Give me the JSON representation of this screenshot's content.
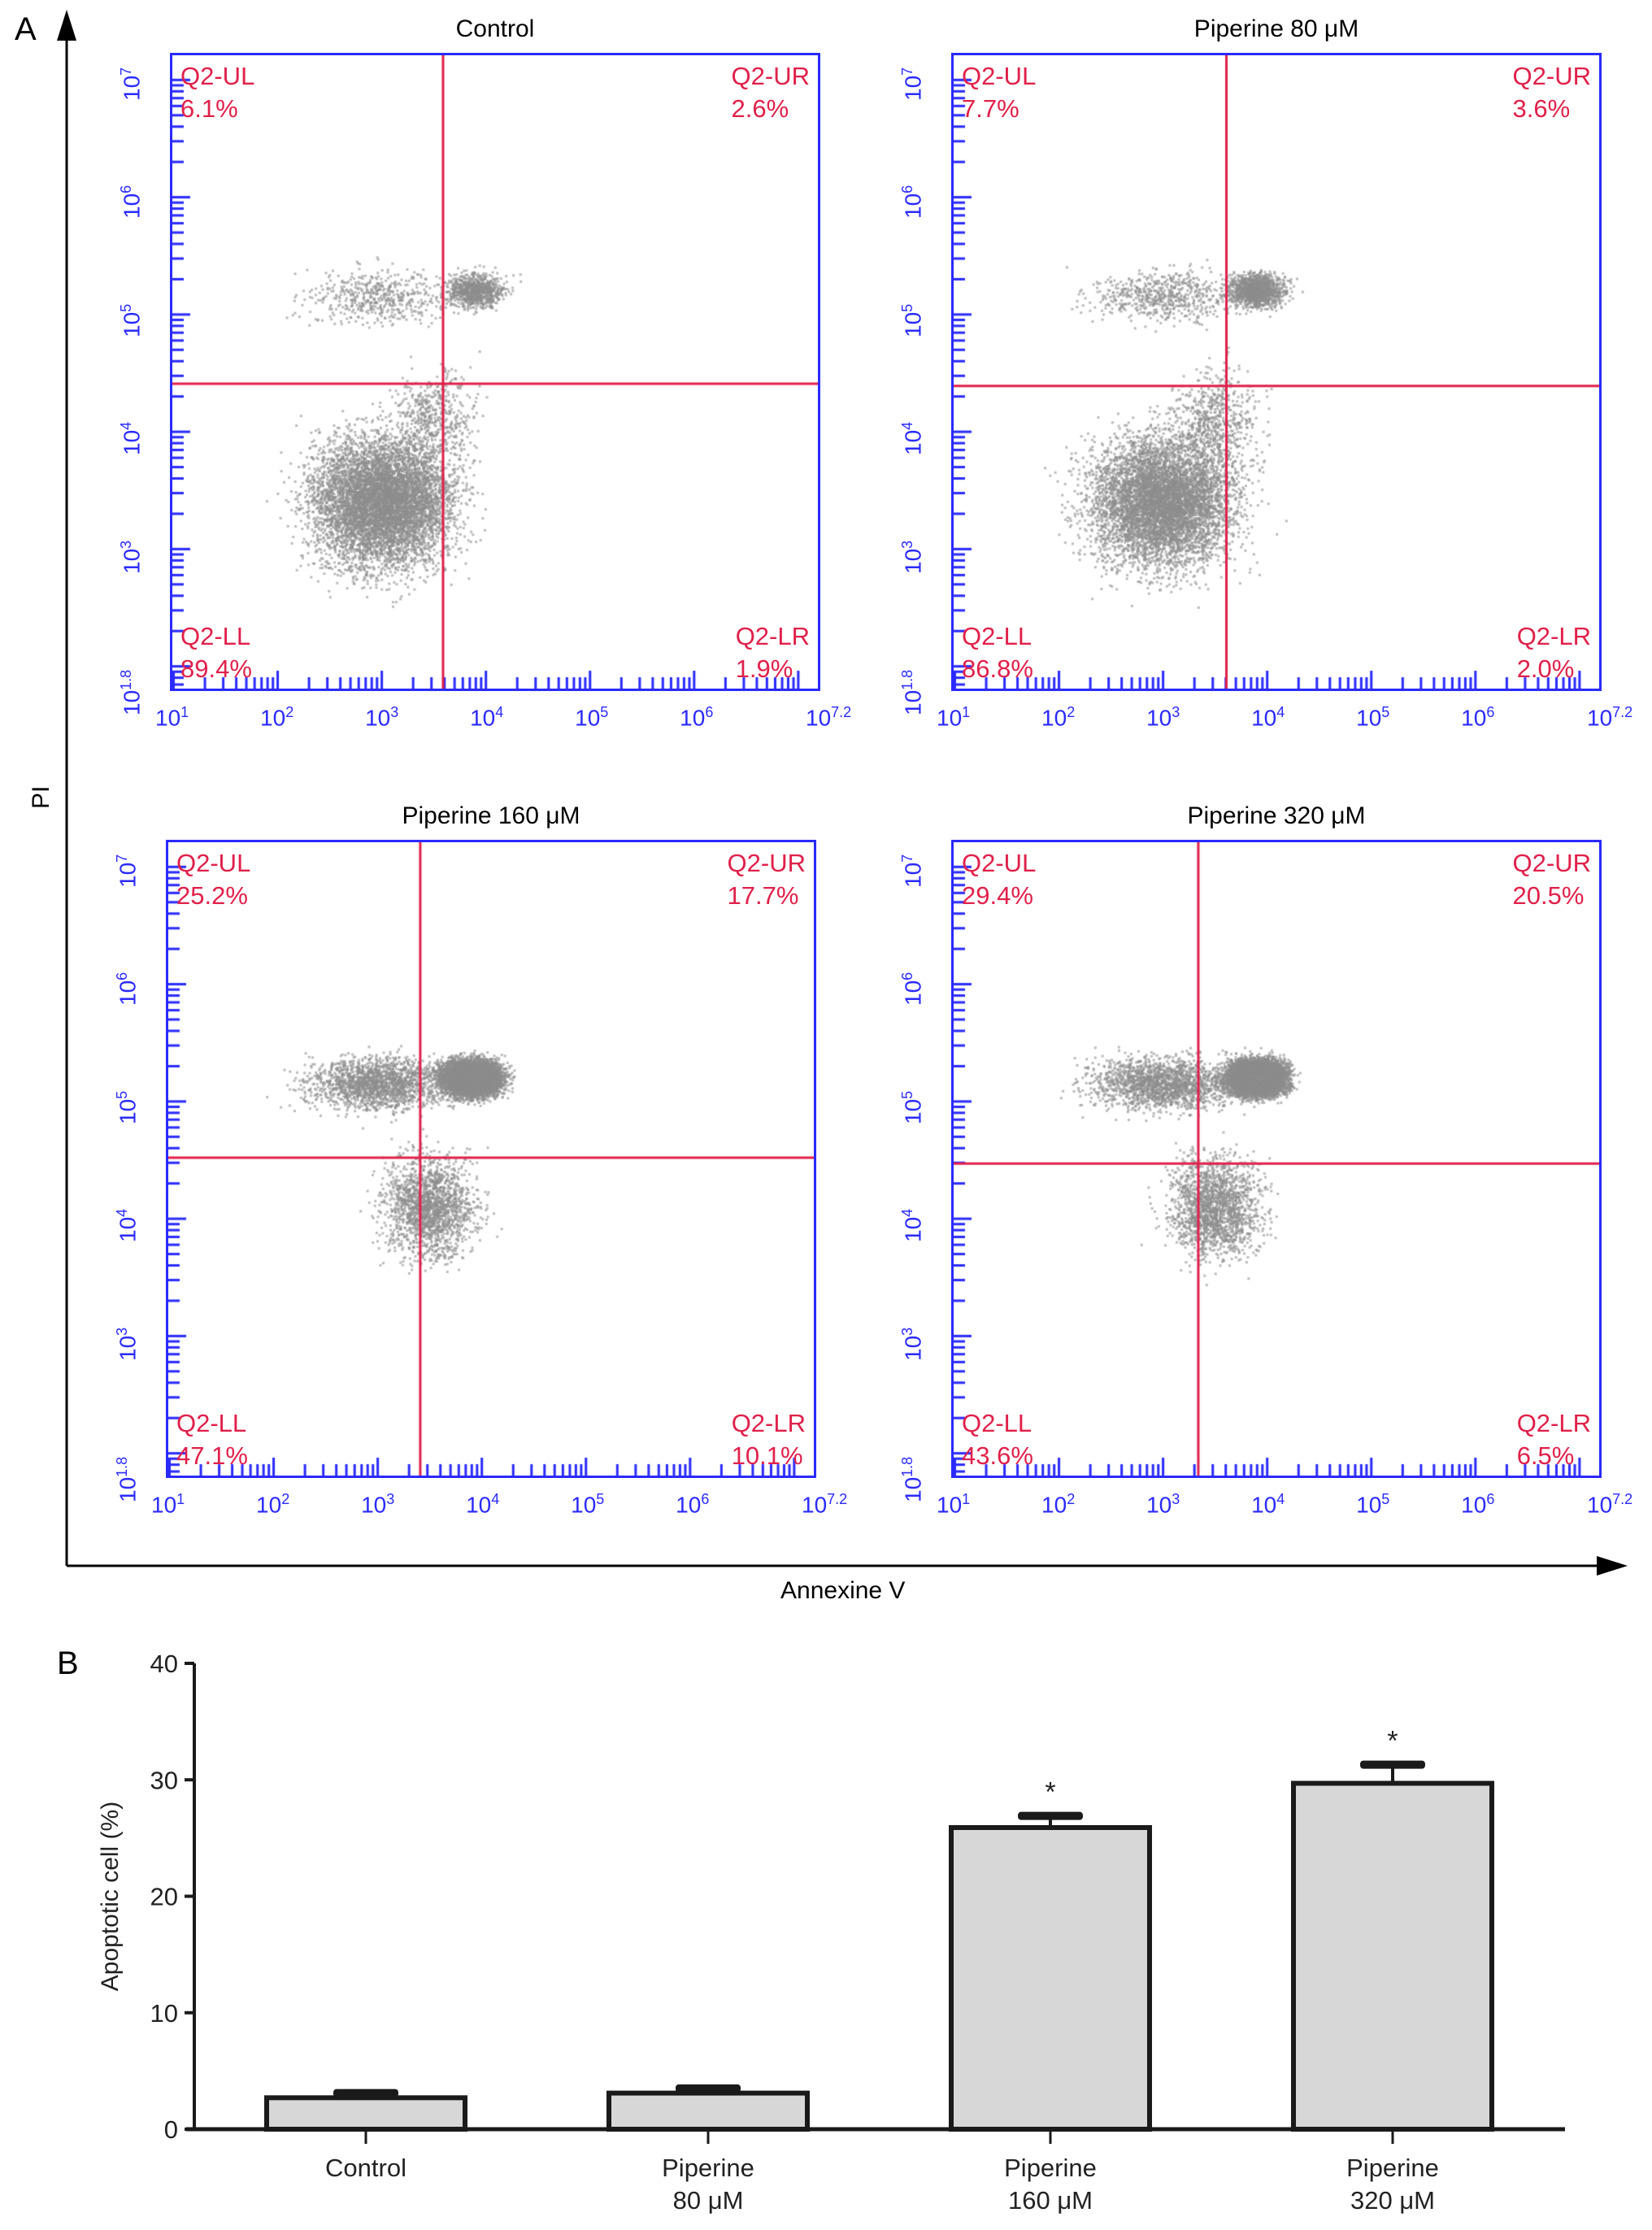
{
  "figure": {
    "label_a": "A",
    "label_b": "B",
    "y_axis_label": "PI",
    "x_axis_label": "Annexine V"
  },
  "flow_panels": [
    {
      "title": "Control",
      "gate_x_log": 3.6,
      "gate_y_log": 4.4,
      "quadrants": {
        "UL": {
          "name": "Q2-UL",
          "value": "6.1%"
        },
        "UR": {
          "name": "Q2-UR",
          "value": "2.6%"
        },
        "LL": {
          "name": "Q2-LL",
          "value": "89.4%"
        },
        "LR": {
          "name": "Q2-LR",
          "value": "1.9%"
        }
      }
    },
    {
      "title": "Piperine 80 μM",
      "gate_x_log": 3.62,
      "gate_y_log": 4.38,
      "quadrants": {
        "UL": {
          "name": "Q2-UL",
          "value": "7.7%"
        },
        "UR": {
          "name": "Q2-UR",
          "value": "3.6%"
        },
        "LL": {
          "name": "Q2-LL",
          "value": "86.8%"
        },
        "LR": {
          "name": "Q2-LR",
          "value": "2.0%"
        }
      }
    },
    {
      "title": "Piperine 160 μM",
      "gate_x_log": 3.42,
      "gate_y_log": 4.51,
      "quadrants": {
        "UL": {
          "name": "Q2-UL",
          "value": "25.2%"
        },
        "UR": {
          "name": "Q2-UR",
          "value": "17.7%"
        },
        "LL": {
          "name": "Q2-LL",
          "value": "47.1%"
        },
        "LR": {
          "name": "Q2-LR",
          "value": "10.1%"
        }
      }
    },
    {
      "title": "Piperine 320 μM",
      "gate_x_log": 3.35,
      "gate_y_log": 4.46,
      "quadrants": {
        "UL": {
          "name": "Q2-UL",
          "value": "29.4%"
        },
        "UR": {
          "name": "Q2-UR",
          "value": "20.5%"
        },
        "LL": {
          "name": "Q2-LL",
          "value": "43.6%"
        },
        "LR": {
          "name": "Q2-LR",
          "value": "6.5%"
        }
      }
    }
  ],
  "flow_axes": {
    "x_ticks": [
      {
        "base": "10",
        "exp": "1"
      },
      {
        "base": "10",
        "exp": "2"
      },
      {
        "base": "10",
        "exp": "3"
      },
      {
        "base": "10",
        "exp": "4"
      },
      {
        "base": "10",
        "exp": "5"
      },
      {
        "base": "10",
        "exp": "6"
      },
      {
        "base": "10",
        "exp": "7.2"
      }
    ],
    "y_ticks": [
      {
        "base": "10",
        "exp": "1.8"
      },
      {
        "base": "10",
        "exp": "3"
      },
      {
        "base": "10",
        "exp": "4"
      },
      {
        "base": "10",
        "exp": "5"
      },
      {
        "base": "10",
        "exp": "6"
      },
      {
        "base": "10",
        "exp": "7"
      }
    ],
    "xlim_log": [
      1,
      7.2
    ],
    "ylim_log": [
      1.8,
      7.2
    ]
  },
  "colors": {
    "gate": "#e0204a",
    "axis": "#2a2aff",
    "bar_fill": "#d7d7d7",
    "bar_stroke": "#1a1a1a"
  },
  "chart_data": {
    "type": "bar",
    "title": "",
    "xlabel": "",
    "ylabel": "Apoptotic cell (%)",
    "ylim": [
      0,
      40
    ],
    "yticks": [
      "0",
      "10",
      "20",
      "30",
      "40"
    ],
    "categories": [
      [
        "Control"
      ],
      [
        "Piperine",
        "80 μM"
      ],
      [
        "Piperine",
        "160 μM"
      ],
      [
        "Piperine",
        "320 μM"
      ]
    ],
    "values": [
      2.7,
      3.1,
      25.9,
      29.7
    ],
    "errors": [
      0.4,
      0.4,
      1.0,
      1.6
    ],
    "significance": [
      "",
      "",
      "*",
      "*"
    ]
  }
}
